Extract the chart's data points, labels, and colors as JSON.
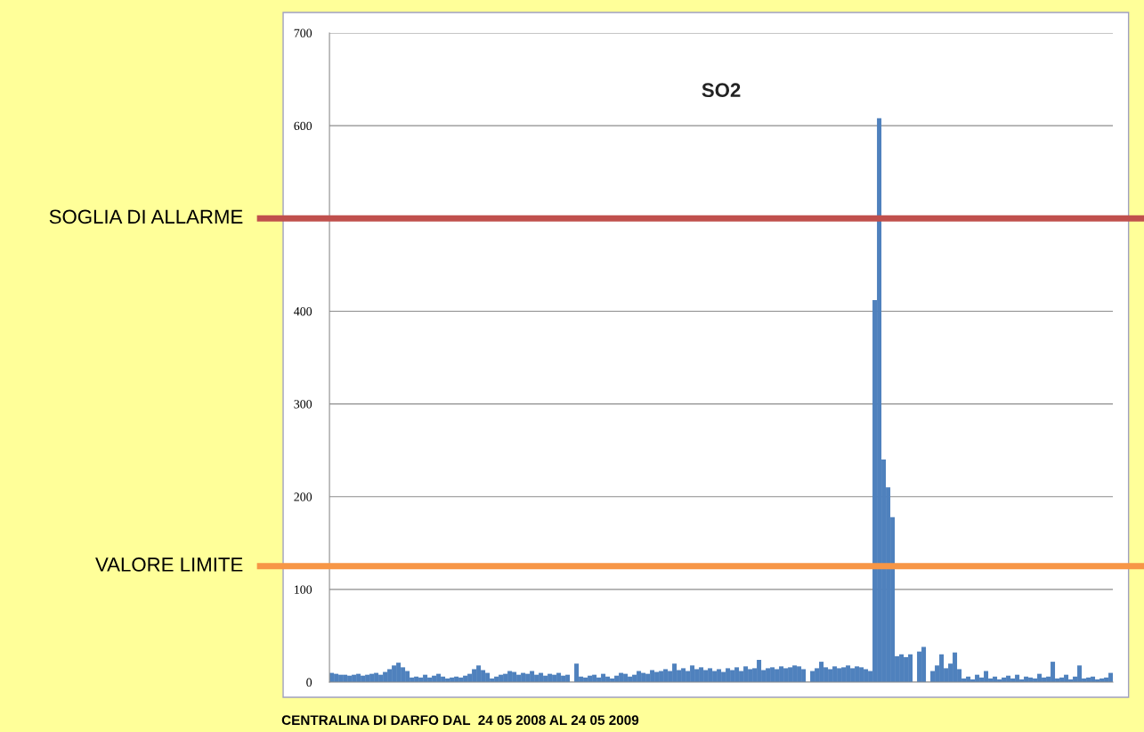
{
  "chart_data": {
    "type": "bar",
    "title": "SO2",
    "categories": [
      null,
      null,
      null,
      null,
      null,
      null,
      null,
      null,
      null,
      null,
      null,
      null,
      null,
      null,
      null,
      null,
      null,
      null,
      null,
      null,
      null,
      null,
      null,
      null,
      null,
      null,
      null,
      null,
      null,
      null,
      null,
      null,
      null,
      null,
      null,
      null,
      null,
      null,
      null,
      null,
      null,
      null,
      null,
      null,
      null,
      null,
      null,
      null,
      null,
      null,
      null,
      null,
      null,
      null,
      null,
      null,
      null,
      null,
      null,
      null,
      null,
      null,
      null,
      null,
      null,
      null,
      null,
      null,
      null,
      null,
      null,
      null,
      null,
      null,
      null,
      null,
      null,
      null,
      null,
      null,
      null,
      null,
      null,
      null,
      null,
      null,
      null,
      null,
      null,
      null,
      null,
      null,
      null,
      null,
      null,
      null,
      null,
      null,
      null,
      null,
      null,
      null,
      null,
      null,
      null,
      null,
      null,
      null,
      null,
      null,
      null,
      null,
      null,
      null,
      null,
      null,
      null,
      null,
      null,
      null,
      null,
      null,
      null,
      null,
      null,
      null,
      null,
      null,
      null,
      null,
      null,
      null,
      null,
      null,
      null,
      null,
      null,
      null,
      null,
      null,
      null,
      null,
      null,
      null,
      null,
      null,
      null,
      null,
      null,
      null,
      null,
      null,
      null,
      null,
      null,
      null,
      null,
      null,
      null,
      null,
      null,
      null,
      null,
      null,
      null,
      null,
      null,
      null,
      null,
      null,
      null,
      null,
      null,
      null,
      null,
      null
    ],
    "series": [
      {
        "color": "#4f81bd",
        "values": [
          10,
          9,
          8,
          8,
          7,
          8,
          9,
          7,
          8,
          9,
          10,
          8,
          11,
          14,
          18,
          21,
          16,
          12,
          5,
          6,
          5,
          8,
          5,
          7,
          9,
          6,
          4,
          5,
          6,
          5,
          7,
          9,
          14,
          18,
          13,
          10,
          4,
          6,
          8,
          9,
          12,
          11,
          8,
          10,
          9,
          12,
          8,
          10,
          7,
          9,
          8,
          10,
          7,
          8,
          0,
          20,
          6,
          5,
          7,
          8,
          5,
          9,
          6,
          4,
          7,
          10,
          9,
          6,
          8,
          12,
          10,
          9,
          13,
          11,
          12,
          14,
          12,
          20,
          13,
          15,
          12,
          18,
          14,
          16,
          13,
          15,
          12,
          14,
          11,
          15,
          13,
          16,
          12,
          17,
          14,
          15,
          24,
          13,
          15,
          16,
          14,
          17,
          15,
          16,
          18,
          17,
          14,
          0,
          12,
          15,
          22,
          16,
          14,
          17,
          15,
          16,
          18,
          15,
          17,
          16,
          14,
          12,
          412,
          608,
          240,
          210,
          178,
          28,
          30,
          27,
          30,
          0,
          33,
          38,
          0,
          12,
          18,
          30,
          15,
          20,
          32,
          14,
          4,
          6,
          3,
          8,
          5,
          12,
          4,
          6,
          3,
          5,
          7,
          4,
          8,
          3,
          6,
          5,
          4,
          9,
          5,
          6,
          22,
          4,
          5,
          8,
          3,
          6,
          18,
          4,
          5,
          6,
          3,
          4,
          5,
          10
        ]
      }
    ],
    "ylim": [
      0,
      700
    ],
    "yticks": [
      0,
      100,
      200,
      300,
      400,
      {
        "value": 500,
        "label": null
      },
      600,
      700
    ],
    "grid": "y",
    "ref_lines": [
      {
        "axis": "y",
        "value": 500,
        "label": "SOGLIA DI ALLARME",
        "color": "#c0504d"
      },
      {
        "axis": "y",
        "value": 125,
        "label": "VALORE LIMITE",
        "color": "#f79646"
      }
    ],
    "annotations": [
      "CENTRALINA DI DARFO DAL  24 05 2008 AL 24 05 2009"
    ]
  }
}
